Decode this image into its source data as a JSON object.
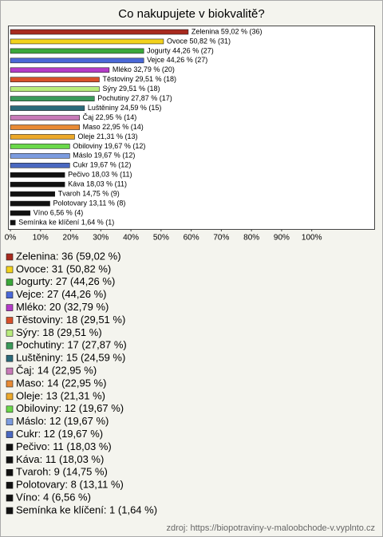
{
  "chart_data": {
    "type": "bar",
    "orientation": "horizontal",
    "title": "Co nakupujete v biokvalitě?",
    "categories": [
      "Zelenina",
      "Ovoce",
      "Jogurty",
      "Vejce",
      "Mléko",
      "Těstoviny",
      "Sýry",
      "Pochutiny",
      "Luštěniny",
      "Čaj",
      "Maso",
      "Oleje",
      "Obiloviny",
      "Máslo",
      "Cukr",
      "Pečivo",
      "Káva",
      "Tvaroh",
      "Polotovary",
      "Víno",
      "Semínka ke klíčení"
    ],
    "values": [
      59.02,
      50.82,
      44.26,
      44.26,
      32.79,
      29.51,
      29.51,
      27.87,
      24.59,
      22.95,
      22.95,
      21.31,
      19.67,
      19.67,
      19.67,
      18.03,
      18.03,
      14.75,
      13.11,
      6.56,
      1.64
    ],
    "value_labels": [
      "Zelenina 59,02 % (36)",
      "Ovoce 50,82 % (31)",
      "Jogurty 44,26 % (27)",
      "Vejce 44,26 % (27)",
      "Mléko 32,79 % (20)",
      "Těstoviny 29,51 % (18)",
      "Sýry 29,51 % (18)",
      "Pochutiny 27,87 % (17)",
      "Luštěniny 24,59 % (15)",
      "Čaj 22,95 % (14)",
      "Maso 22,95 % (14)",
      "Oleje 21,31 % (13)",
      "Obiloviny 19,67 % (12)",
      "Máslo 19,67 % (12)",
      "Cukr 19,67 % (12)",
      "Pečivo 18,03 % (11)",
      "Káva 18,03 % (11)",
      "Tvaroh 14,75 % (9)",
      "Polotovary 13,11 % (8)",
      "Víno 6,56 % (4)",
      "Semínka ke klíčení 1,64 % (1)"
    ],
    "legend_labels": [
      "Zelenina: 36 (59,02 %)",
      "Ovoce: 31 (50,82 %)",
      "Jogurty: 27 (44,26 %)",
      "Vejce: 27 (44,26 %)",
      "Mléko: 20 (32,79 %)",
      "Těstoviny: 18 (29,51 %)",
      "Sýry: 18 (29,51 %)",
      "Pochutiny: 17 (27,87 %)",
      "Luštěniny: 15 (24,59 %)",
      "Čaj: 14 (22,95 %)",
      "Maso: 14 (22,95 %)",
      "Oleje: 13 (21,31 %)",
      "Obiloviny: 12 (19,67 %)",
      "Máslo: 12 (19,67 %)",
      "Cukr: 12 (19,67 %)",
      "Pečivo: 11 (18,03 %)",
      "Káva: 11 (18,03 %)",
      "Tvaroh: 9 (14,75 %)",
      "Polotovary: 8 (13,11 %)",
      "Víno: 4 (6,56 %)",
      "Semínka ke klíčení: 1 (1,64 %)"
    ],
    "colors": [
      "#a82a1e",
      "#f2d21c",
      "#3aa83a",
      "#4a68d8",
      "#b43cc8",
      "#d8502a",
      "#b8ec7c",
      "#3a9a5a",
      "#2a6a7a",
      "#c87ab8",
      "#e88a34",
      "#eca82a",
      "#6ad84a",
      "#7c9ce0",
      "#4a68c0",
      "#111111",
      "#111111",
      "#111111",
      "#111111",
      "#111111",
      "#111111"
    ],
    "xlim": [
      0,
      121
    ],
    "xticks": [
      {
        "value": 0,
        "label": "0%"
      },
      {
        "value": 10,
        "label": "10%"
      },
      {
        "value": 20,
        "label": "20%"
      },
      {
        "value": 30,
        "label": "30%"
      },
      {
        "value": 40,
        "label": "40%"
      },
      {
        "value": 50,
        "label": "50%"
      },
      {
        "value": 60,
        "label": "60%"
      },
      {
        "value": 70,
        "label": "70%"
      },
      {
        "value": 80,
        "label": "80%"
      },
      {
        "value": 90,
        "label": "90%"
      },
      {
        "value": 100,
        "label": "100%"
      }
    ],
    "source": "zdroj: https://biopotraviny-v-maloobchode-v.vyplnto.cz"
  }
}
